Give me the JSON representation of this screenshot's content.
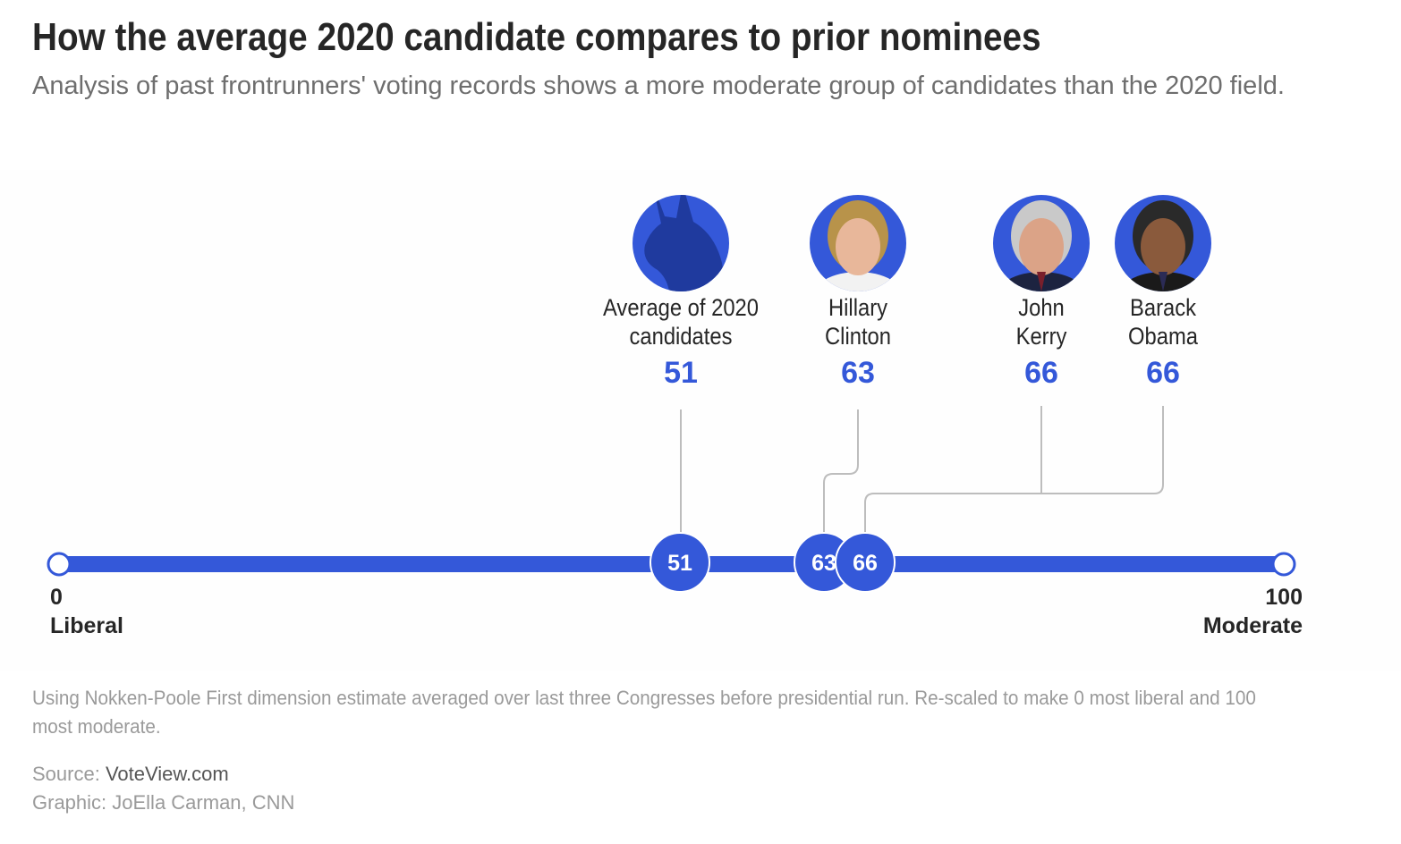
{
  "title": "How the average 2020 candidate compares to prior nominees",
  "subtitle": "Analysis of past frontrunners' voting records shows a more moderate group of candidates than the 2020 field.",
  "chart_data": {
    "type": "scatter",
    "title": "How the average 2020 candidate compares to prior nominees",
    "xlim": [
      0,
      100
    ],
    "axis_min_label": "0",
    "axis_min_desc": "Liberal",
    "axis_max_label": "100",
    "axis_max_desc": "Moderate",
    "points": [
      {
        "name": "Average of 2020 candidates",
        "value": 51,
        "dot_label": "51",
        "icon": "donkey-icon"
      },
      {
        "name": "Hillary Clinton",
        "value": 63,
        "dot_label": "63",
        "icon": "portrait-hillary-clinton"
      },
      {
        "name": "John Kerry",
        "value": 66,
        "dot_label": "66",
        "icon": "portrait-john-kerry"
      },
      {
        "name": "Barack Obama",
        "value": 66,
        "dot_label": "",
        "icon": "portrait-barack-obama"
      }
    ],
    "colors": {
      "accent": "#3458d9",
      "line": "#bdbdbd"
    }
  },
  "note": "Using Nokken-Poole First dimension estimate averaged over last three Congresses before presidential run. Re-scaled to make 0 most liberal and 100 most moderate.",
  "source_prefix": "Source: ",
  "source_name": "VoteView.com",
  "graphic_credit": "Graphic: JoElla Carman, CNN"
}
